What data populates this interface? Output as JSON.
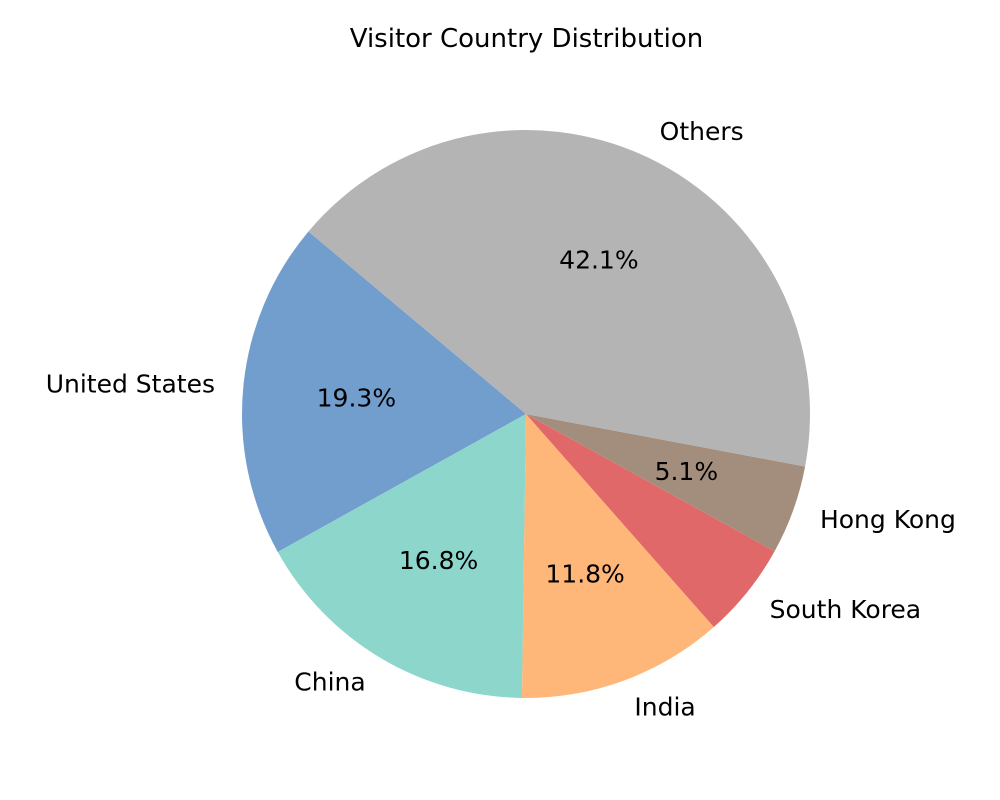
{
  "chart_data": {
    "type": "pie",
    "title": "Visitor Country Distribution",
    "slices": [
      {
        "label": "United States",
        "value": 19.3,
        "pct_label": "19.3%",
        "color": "#729ece"
      },
      {
        "label": "China",
        "value": 16.8,
        "pct_label": "16.8%",
        "color": "#8cd6cc"
      },
      {
        "label": "India",
        "value": 11.8,
        "pct_label": "11.8%",
        "color": "#ffb779"
      },
      {
        "label": "South Korea",
        "value": 5.5,
        "pct_label": "",
        "color": "#e06868"
      },
      {
        "label": "Hong Kong",
        "value": 5.1,
        "pct_label": "5.1%",
        "color": "#a38e7d"
      },
      {
        "label": "Others",
        "value": 42.1,
        "pct_label": "42.1%",
        "color": "#b4b4b4"
      }
    ],
    "start_angle_deg": 140,
    "direction": "counterclockwise",
    "legend": "none"
  }
}
